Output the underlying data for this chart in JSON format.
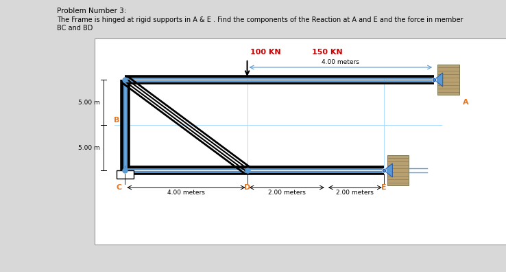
{
  "title_line1": "Problem Number 3:",
  "title_line2": "The Frame is hinged at rigid supports in A & E . Find the components of the Reaction at A and E and the force in member",
  "title_line3": "BC and BD",
  "bg_color": "#d8d8d8",
  "diagram_bg": "#ffffff",
  "label_color_orange": "#E87722",
  "label_color_red": "#CC0000",
  "label_color_blue": "#5B9BD5",
  "load1": "100 KN",
  "load2": "150 KN",
  "dim1": "4.00 meters",
  "dim2": "5.00 m",
  "dim3": "5.00 m",
  "dim4": "4.00 meters",
  "dim5": "2.00 meters",
  "dim6": "2.00 meters",
  "node_B": "B",
  "node_C": "C",
  "node_D": "D",
  "node_E": "E",
  "node_A": "A",
  "title_fontsize": 7.5,
  "body_fontsize": 7.0,
  "label_fontsize": 8.0
}
